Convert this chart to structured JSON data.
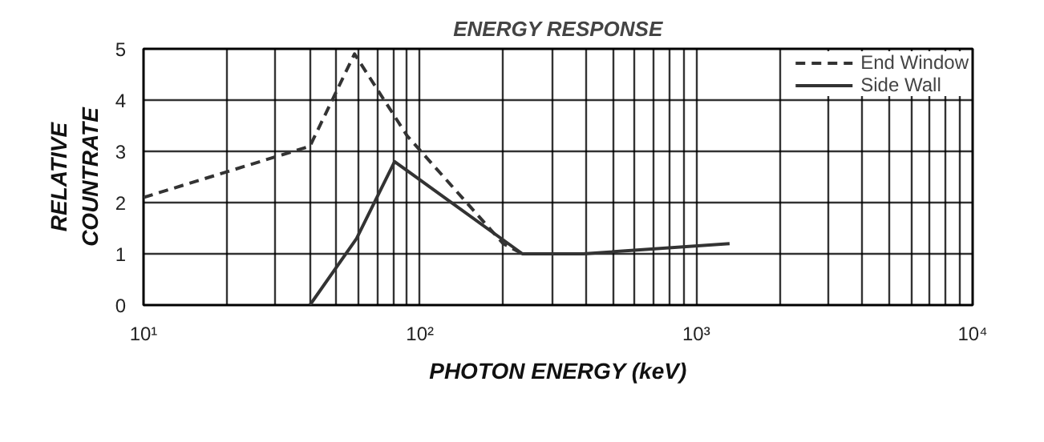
{
  "chart_data": {
    "type": "line",
    "title": "ENERGY RESPONSE",
    "xlabel": "PHOTON ENERGY (keV)",
    "ylabel": "RELATIVE COUNTRATE",
    "log": "x",
    "xlim": [
      10,
      10000
    ],
    "ylim": [
      0,
      5
    ],
    "xticks": [
      {
        "value": 10,
        "label": "10¹"
      },
      {
        "value": 100,
        "label": "10²"
      },
      {
        "value": 1000,
        "label": "10³"
      },
      {
        "value": 10000,
        "label": "10⁴"
      }
    ],
    "yticks": [
      0,
      1,
      2,
      3,
      4,
      5
    ],
    "grid": true,
    "legend": "top right",
    "series": [
      {
        "name": "End Window",
        "color": "#333333",
        "line_style": "dashed",
        "x": [
          10,
          40,
          58,
          90,
          200,
          235
        ],
        "values": [
          2.1,
          3.1,
          4.9,
          3.3,
          1.2,
          1.0
        ]
      },
      {
        "name": "Side Wall",
        "color": "#333333",
        "line_style": "solid",
        "x": [
          40,
          59,
          81,
          235,
          390,
          1320
        ],
        "values": [
          0,
          1.3,
          2.8,
          1.0,
          1.0,
          1.2
        ]
      }
    ]
  }
}
